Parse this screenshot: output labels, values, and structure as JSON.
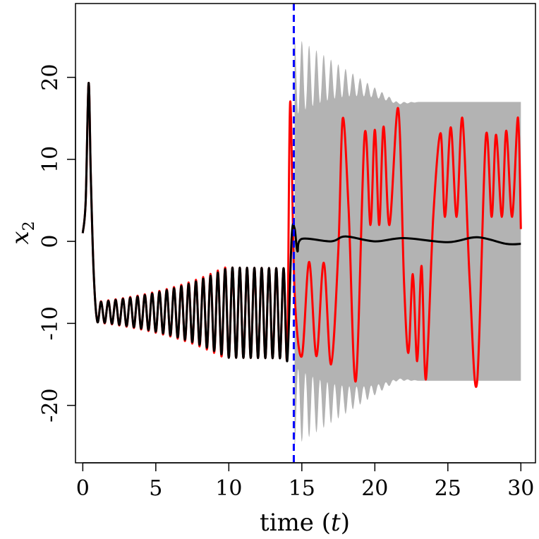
{
  "chart_data": {
    "type": "line",
    "title": "",
    "xlabel": {
      "prefix": "time (",
      "var": "t",
      "suffix": ")"
    },
    "ylabel": {
      "var": "x",
      "sub": "2"
    },
    "xlim": [
      -0.5,
      31
    ],
    "ylim": [
      -27,
      29
    ],
    "x_ticks": [
      0,
      5,
      10,
      15,
      20,
      25,
      30
    ],
    "x_tick_labels": [
      "0",
      "5",
      "10",
      "15",
      "20",
      "25",
      "30"
    ],
    "y_ticks": [
      -20,
      -10,
      0,
      10,
      20
    ],
    "y_tick_labels": [
      "-20",
      "-10",
      "0",
      "10",
      "20"
    ],
    "grid": false,
    "legend": "none",
    "vertical_line": {
      "x": 14.45,
      "color": "#0000ff",
      "style": "dashed"
    },
    "band": {
      "color": "#b3b3b3",
      "start_x": 14.5,
      "end_x": 30,
      "envelope_start": 25,
      "envelope_end": 17,
      "min_half_width": 3,
      "oscillation_period": 0.5
    },
    "series": [
      {
        "color": "#ff0000",
        "key_points": [
          [
            0,
            1
          ],
          [
            0.2,
            5
          ],
          [
            0.4,
            19.3
          ],
          [
            0.55,
            8
          ],
          [
            0.75,
            -4
          ],
          [
            1.0,
            -9.8
          ],
          [
            14.0,
            -14
          ],
          [
            14.2,
            17
          ],
          [
            14.5,
            -6
          ],
          [
            15.0,
            -14
          ],
          [
            15.5,
            -2.5
          ],
          [
            16.0,
            -14
          ],
          [
            16.5,
            -2.6
          ],
          [
            17.0,
            -15
          ],
          [
            17.5,
            -1
          ],
          [
            17.8,
            15
          ],
          [
            18.2,
            4
          ],
          [
            18.7,
            -17
          ],
          [
            19.3,
            13
          ],
          [
            19.7,
            2
          ],
          [
            20.0,
            13.6
          ],
          [
            20.3,
            2
          ],
          [
            20.6,
            14
          ],
          [
            21.0,
            2
          ],
          [
            21.6,
            16.2
          ],
          [
            22.0,
            -5
          ],
          [
            22.3,
            -13.6
          ],
          [
            22.6,
            -4
          ],
          [
            22.9,
            -14.6
          ],
          [
            23.2,
            -3
          ],
          [
            23.5,
            -16.8
          ],
          [
            24.0,
            3
          ],
          [
            24.5,
            13.2
          ],
          [
            24.8,
            3
          ],
          [
            25.2,
            13.9
          ],
          [
            25.6,
            3
          ],
          [
            26.0,
            15
          ],
          [
            26.5,
            -5
          ],
          [
            27.0,
            -17.2
          ],
          [
            27.6,
            12.7
          ],
          [
            28.0,
            3
          ],
          [
            28.3,
            13
          ],
          [
            28.7,
            3
          ],
          [
            29.0,
            13.5
          ],
          [
            29.4,
            3
          ],
          [
            29.8,
            15.1
          ],
          [
            30.0,
            1.5
          ]
        ]
      },
      {
        "color": "#000000",
        "key_points": [
          [
            0,
            1
          ],
          [
            0.2,
            5
          ],
          [
            0.4,
            19.3
          ],
          [
            0.55,
            8
          ],
          [
            0.75,
            -4
          ],
          [
            1.0,
            -9.8
          ],
          [
            14.0,
            -14.6
          ],
          [
            14.3,
            0.4
          ],
          [
            14.5,
            1.6
          ],
          [
            14.7,
            -1.2
          ],
          [
            15.0,
            0.3
          ],
          [
            17.0,
            0
          ],
          [
            18.0,
            0.6
          ],
          [
            20.0,
            0
          ],
          [
            22.0,
            0.4
          ],
          [
            25.0,
            -0.1
          ],
          [
            27.0,
            0.5
          ],
          [
            29.0,
            -0.3
          ],
          [
            30.0,
            -0.3
          ]
        ]
      }
    ]
  }
}
